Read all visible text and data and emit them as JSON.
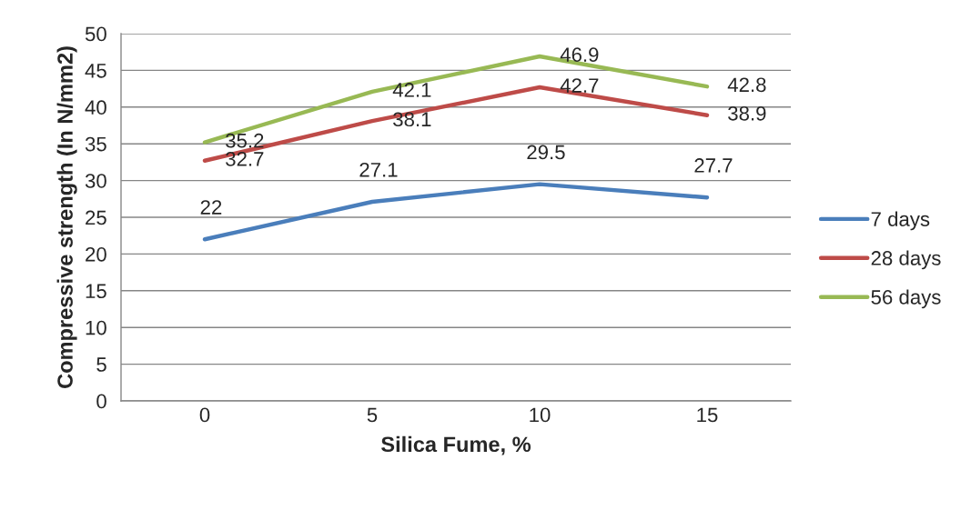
{
  "chart_data": {
    "type": "line",
    "xlabel": "Silica Fume, %",
    "ylabel": "Compressive strength (In N/mm2)",
    "categories": [
      "0",
      "5",
      "10",
      "15"
    ],
    "series": [
      {
        "name": "7 days",
        "color": "#4a7ebb",
        "values": [
          22,
          27.1,
          29.5,
          27.7
        ]
      },
      {
        "name": "28 days",
        "color": "#be4b48",
        "values": [
          32.7,
          38.1,
          42.7,
          38.9
        ]
      },
      {
        "name": "56 days",
        "color": "#98b954",
        "values": [
          35.2,
          42.1,
          46.9,
          42.8
        ]
      }
    ],
    "ylim": [
      0,
      50
    ],
    "yticks": [
      0,
      5,
      10,
      15,
      20,
      25,
      30,
      35,
      40,
      45,
      50
    ],
    "grid": "y",
    "legend": "right",
    "data_labels": true,
    "marker": "none",
    "line_style": "solid"
  }
}
